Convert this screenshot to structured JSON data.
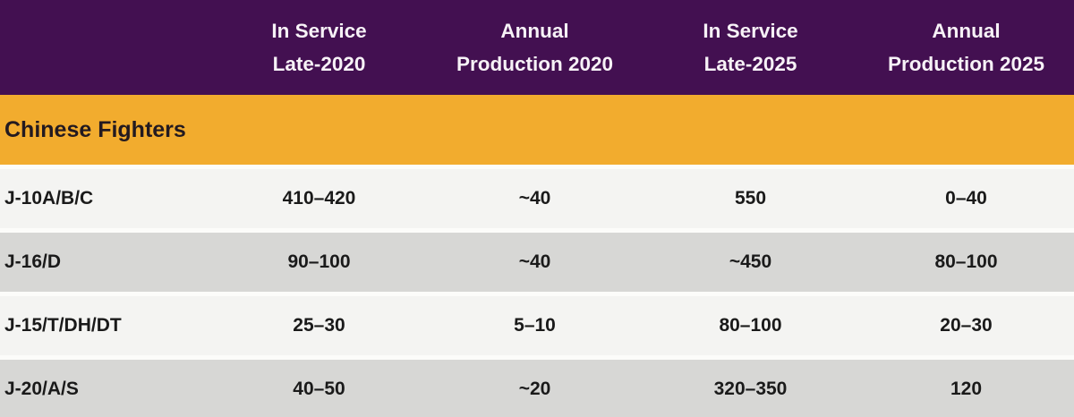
{
  "chart_data": {
    "type": "table",
    "section_title": "Chinese Fighters",
    "columns": [
      {
        "line1": "In Service",
        "line2": "Late-2020"
      },
      {
        "line1": "Annual",
        "line2": "Production 2020"
      },
      {
        "line1": "In Service",
        "line2": "Late-2025"
      },
      {
        "line1": "Annual",
        "line2": "Production 2025"
      }
    ],
    "rows": [
      {
        "label": "J-10A/B/C",
        "values": [
          "410–420",
          "~40",
          "550",
          "0–40"
        ]
      },
      {
        "label": "J-16/D",
        "values": [
          "90–100",
          "~40",
          "~450",
          "80–100"
        ]
      },
      {
        "label": "J-15/T/DH/DT",
        "values": [
          "25–30",
          "5–10",
          "80–100",
          "20–30"
        ]
      },
      {
        "label": "J-20/A/S",
        "values": [
          "40–50",
          "~20",
          "320–350",
          "120"
        ]
      }
    ]
  },
  "colors": {
    "header_bg": "#431051",
    "header_text": "#F7F2F7",
    "section_bg": "#F2AC2E",
    "section_text": "#231A20",
    "row_light": "#F4F4F2",
    "row_dark": "#D7D7D5",
    "divider": "#FCFCFA",
    "cell_text": "#1A1A1A"
  }
}
